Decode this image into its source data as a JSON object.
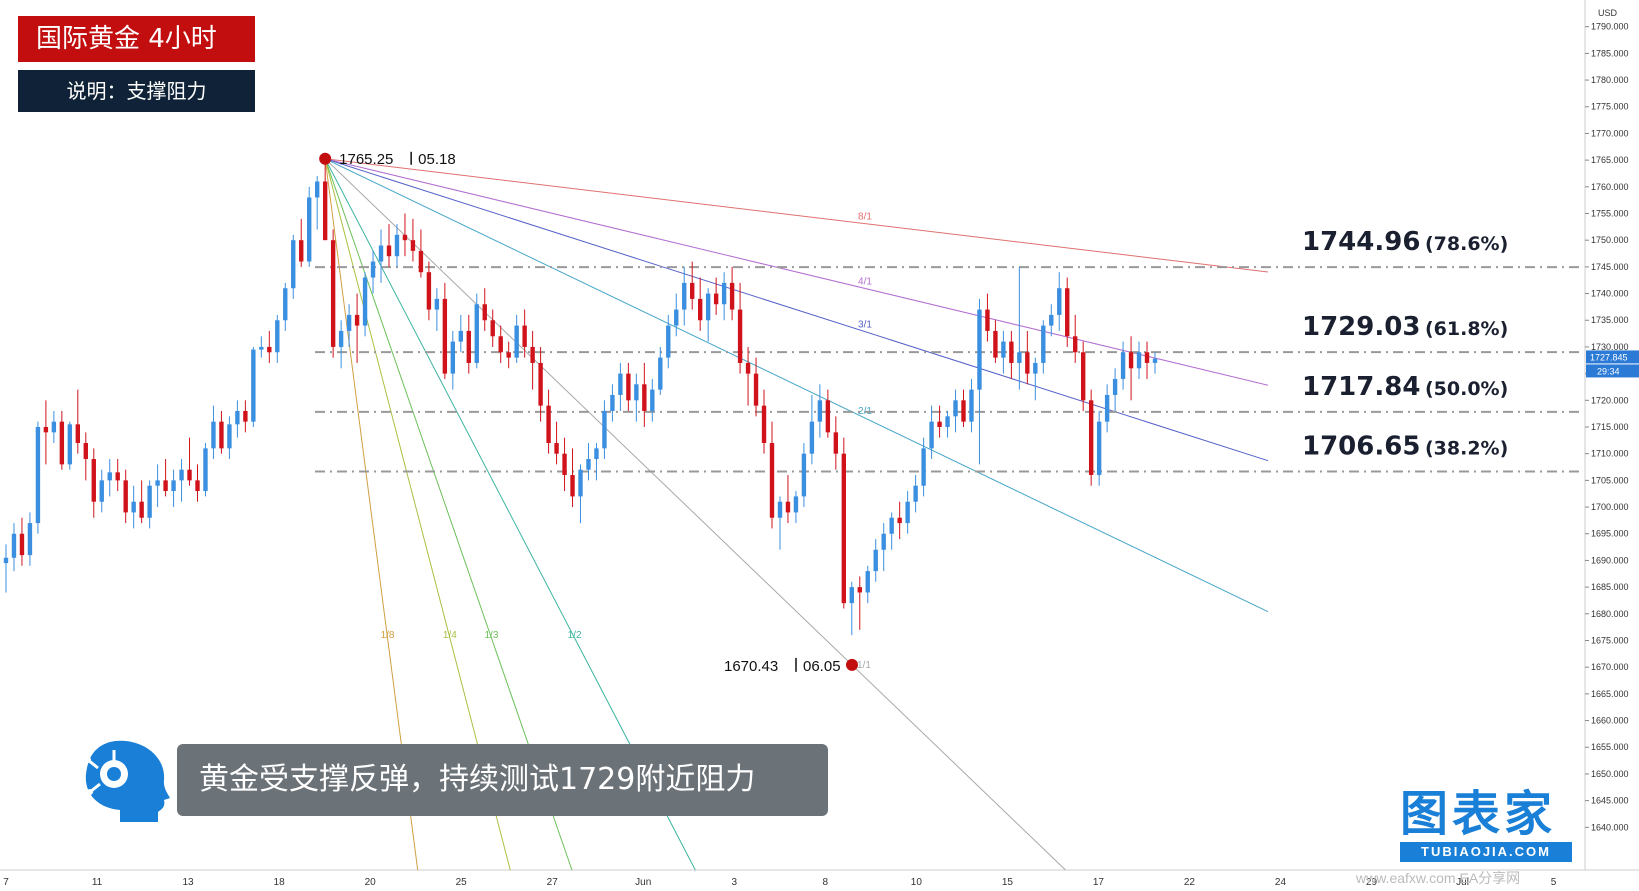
{
  "header": {
    "title": "国际黄金 4小时",
    "subtitle": "说明：支撑阻力"
  },
  "caption": "黄金受支撑反弹，持续测试1729附近阻力",
  "brand": {
    "name": "图表家",
    "url": "TUBIAOJIA.COM"
  },
  "watermark": "www.eafxw.com EA分享网",
  "colors": {
    "up": "#3b8fe0",
    "down": "#d0131b",
    "title_bg": "#c20e0e",
    "subtitle_bg": "#0f2237",
    "brand": "#1a7fd6"
  },
  "chart_data": {
    "type": "candlestick",
    "symbol": "XAUUSD",
    "interval": "4H",
    "currency": "USD",
    "ylim": [
      1632,
      1795
    ],
    "y_ticks": [
      1640,
      1645,
      1650,
      1655,
      1660,
      1665,
      1670,
      1675,
      1680,
      1685,
      1690,
      1695,
      1700,
      1705,
      1710,
      1715,
      1720,
      1725,
      1730,
      1735,
      1740,
      1745,
      1750,
      1755,
      1760,
      1765,
      1770,
      1775,
      1780,
      1785,
      1790
    ],
    "y_tick_format": "0.000",
    "x_ticks": [
      "7",
      "11",
      "13",
      "18",
      "20",
      "25",
      "27",
      "Jun",
      "3",
      "8",
      "10",
      "15",
      "17",
      "22",
      "24",
      "29",
      "Jul",
      "5"
    ],
    "last_price": "1727.845",
    "countdown": "29:34",
    "pivot_high": {
      "price": 1765.25,
      "price_label": "1765.25",
      "date_label": "05.18"
    },
    "pivot_low": {
      "price": 1670.43,
      "price_label": "1670.43",
      "date_label": "06.05"
    },
    "fib_levels": [
      {
        "price": 1744.96,
        "label": "1744.96",
        "pct": "(78.6%)"
      },
      {
        "price": 1729.03,
        "label": "1729.03",
        "pct": "(61.8%)"
      },
      {
        "price": 1717.84,
        "label": "1717.84",
        "pct": "(50.0%)"
      },
      {
        "price": 1706.65,
        "label": "1706.65",
        "pct": "(38.2%)"
      }
    ],
    "gann_fan": [
      {
        "label": "8/1",
        "color": "#e07070",
        "end_price": 1745.0
      },
      {
        "label": "4/1",
        "color": "#b46fd0",
        "end_price": 1722.5
      },
      {
        "label": "3/1",
        "color": "#5560c8",
        "end_price": 1710.0
      },
      {
        "label": "2/1",
        "color": "#46a6c8",
        "end_price": 1682.0
      },
      {
        "label": "1/1",
        "color": "#a8a8a8",
        "end_price": 1633.0
      },
      {
        "label": "1/2",
        "color": "#3cb4a0",
        "end_price": 1633.0
      },
      {
        "label": "1/3",
        "color": "#6cc05a",
        "end_price": 1633.0
      },
      {
        "label": "1/4",
        "color": "#a8c040",
        "end_price": 1633.0
      },
      {
        "label": "1/8",
        "color": "#d0a040",
        "end_price": 1633.0
      }
    ],
    "series": [
      {
        "values": [
          [
            1689.5,
            1693,
            1684,
            1690.5
          ],
          [
            1690.5,
            1697,
            1688,
            1695
          ],
          [
            1695,
            1698,
            1689,
            1691
          ],
          [
            1691,
            1699,
            1689,
            1697
          ],
          [
            1697,
            1716,
            1695,
            1715
          ],
          [
            1715,
            1720,
            1708,
            1714
          ],
          [
            1714,
            1718,
            1712,
            1716
          ],
          [
            1716,
            1718,
            1707,
            1708
          ],
          [
            1708,
            1716,
            1707,
            1715.5
          ],
          [
            1715.5,
            1722,
            1710,
            1712
          ],
          [
            1712,
            1714,
            1705,
            1709
          ],
          [
            1709,
            1711,
            1698,
            1701
          ],
          [
            1701,
            1707,
            1699,
            1705
          ],
          [
            1705,
            1709,
            1702,
            1706.5
          ],
          [
            1706.5,
            1709,
            1703,
            1705
          ],
          [
            1705,
            1707,
            1697,
            1699
          ],
          [
            1699,
            1704,
            1696,
            1701
          ],
          [
            1701,
            1705,
            1697,
            1698
          ],
          [
            1698,
            1705,
            1696,
            1704
          ],
          [
            1704,
            1708,
            1700,
            1705
          ],
          [
            1705,
            1709,
            1702,
            1703
          ],
          [
            1703,
            1707,
            1700,
            1705
          ],
          [
            1705,
            1709,
            1701,
            1707
          ],
          [
            1707,
            1713,
            1704,
            1705
          ],
          [
            1705,
            1708,
            1701,
            1703
          ],
          [
            1703,
            1712,
            1702,
            1711
          ],
          [
            1711,
            1719,
            1709,
            1716
          ],
          [
            1716,
            1718,
            1710,
            1711
          ],
          [
            1711,
            1717,
            1709,
            1715.5
          ],
          [
            1715.5,
            1720,
            1713,
            1718
          ],
          [
            1718,
            1720,
            1714,
            1716
          ],
          [
            1716,
            1730,
            1715,
            1729.5
          ],
          [
            1729.5,
            1732,
            1728,
            1730
          ],
          [
            1730,
            1733,
            1727,
            1729
          ],
          [
            1729,
            1736,
            1727,
            1735
          ],
          [
            1735,
            1742,
            1733,
            1741
          ],
          [
            1741,
            1751,
            1739,
            1750
          ],
          [
            1750,
            1754,
            1745,
            1746
          ],
          [
            1746,
            1760,
            1745,
            1758
          ],
          [
            1758,
            1762,
            1752,
            1761
          ],
          [
            1761,
            1765.25,
            1752,
            1750
          ],
          [
            1750,
            1752,
            1728,
            1730
          ],
          [
            1730,
            1735,
            1726,
            1733
          ],
          [
            1733,
            1738,
            1730,
            1736
          ],
          [
            1736,
            1740,
            1727,
            1734
          ],
          [
            1734,
            1744,
            1732,
            1743
          ],
          [
            1743,
            1748,
            1740,
            1746
          ],
          [
            1746,
            1752,
            1742,
            1749
          ],
          [
            1749,
            1753,
            1745,
            1747
          ],
          [
            1747,
            1753,
            1745,
            1751
          ],
          [
            1751,
            1755,
            1747,
            1750
          ],
          [
            1750,
            1754,
            1746,
            1748
          ],
          [
            1748,
            1752,
            1743,
            1744
          ],
          [
            1744,
            1746,
            1735,
            1737
          ],
          [
            1737,
            1741,
            1733,
            1739
          ],
          [
            1739,
            1742,
            1724,
            1725
          ],
          [
            1725,
            1733,
            1722,
            1731
          ],
          [
            1731,
            1736,
            1729,
            1733
          ],
          [
            1733,
            1736,
            1725,
            1727
          ],
          [
            1727,
            1740,
            1726,
            1738
          ],
          [
            1738,
            1741,
            1733,
            1735
          ],
          [
            1735,
            1737,
            1730,
            1732
          ],
          [
            1732,
            1734,
            1727,
            1729
          ],
          [
            1729,
            1731,
            1726,
            1728
          ],
          [
            1728,
            1736,
            1727,
            1734
          ],
          [
            1734,
            1737,
            1728,
            1730
          ],
          [
            1730,
            1733,
            1722,
            1727
          ],
          [
            1727,
            1730,
            1716,
            1719
          ],
          [
            1719,
            1722,
            1710,
            1712
          ],
          [
            1712,
            1716,
            1708,
            1710
          ],
          [
            1710,
            1713,
            1703,
            1706
          ],
          [
            1706,
            1711,
            1700,
            1702
          ],
          [
            1702,
            1708,
            1697,
            1707
          ],
          [
            1707,
            1712,
            1705,
            1709
          ],
          [
            1709,
            1712,
            1705,
            1711
          ],
          [
            1711,
            1720,
            1709,
            1718
          ],
          [
            1718,
            1723,
            1716,
            1721
          ],
          [
            1721,
            1727,
            1718,
            1725
          ],
          [
            1725,
            1727,
            1718,
            1720
          ],
          [
            1720,
            1725,
            1716,
            1723
          ],
          [
            1723,
            1727,
            1715,
            1718
          ],
          [
            1718,
            1724,
            1716,
            1722
          ],
          [
            1722,
            1730,
            1721,
            1728
          ],
          [
            1728,
            1736,
            1726,
            1734
          ],
          [
            1734,
            1740,
            1732,
            1737
          ],
          [
            1737,
            1745,
            1734,
            1742
          ],
          [
            1742,
            1746,
            1737,
            1739
          ],
          [
            1739,
            1743,
            1733,
            1735
          ],
          [
            1735,
            1741,
            1731,
            1740
          ],
          [
            1740,
            1743,
            1736,
            1738
          ],
          [
            1738,
            1744,
            1735,
            1742
          ],
          [
            1742,
            1745,
            1735,
            1737
          ],
          [
            1737,
            1742,
            1725,
            1727
          ],
          [
            1727,
            1730,
            1719,
            1725
          ],
          [
            1725,
            1728,
            1717,
            1719
          ],
          [
            1719,
            1722,
            1710,
            1712
          ],
          [
            1712,
            1716,
            1696,
            1698
          ],
          [
            1698,
            1702,
            1692,
            1701
          ],
          [
            1701,
            1706,
            1697,
            1699
          ],
          [
            1699,
            1703,
            1697,
            1702
          ],
          [
            1702,
            1712,
            1700,
            1710
          ],
          [
            1710,
            1721,
            1708,
            1716
          ],
          [
            1716,
            1723,
            1713,
            1720
          ],
          [
            1720,
            1722,
            1713,
            1714
          ],
          [
            1714,
            1717,
            1707,
            1710
          ],
          [
            1710,
            1713,
            1681,
            1682
          ],
          [
            1682,
            1686,
            1676,
            1685
          ],
          [
            1685,
            1687,
            1677,
            1684
          ],
          [
            1684,
            1689,
            1682,
            1688
          ],
          [
            1688,
            1694,
            1686,
            1692
          ],
          [
            1692,
            1697,
            1688,
            1695
          ],
          [
            1695,
            1699,
            1692,
            1698
          ],
          [
            1698,
            1701,
            1694,
            1697
          ],
          [
            1697,
            1703,
            1695,
            1701
          ],
          [
            1701,
            1706,
            1699,
            1704
          ],
          [
            1704,
            1713,
            1702,
            1711
          ],
          [
            1711,
            1719,
            1709,
            1716
          ],
          [
            1716,
            1719,
            1713,
            1715
          ],
          [
            1715,
            1718,
            1713,
            1717
          ],
          [
            1717,
            1722,
            1714,
            1720
          ],
          [
            1720,
            1722,
            1715,
            1716
          ],
          [
            1716,
            1724,
            1714,
            1722
          ],
          [
            1722,
            1739,
            1708,
            1737
          ],
          [
            1737,
            1740,
            1731,
            1733
          ],
          [
            1733,
            1735,
            1727,
            1728
          ],
          [
            1728,
            1733,
            1725,
            1731
          ],
          [
            1731,
            1733,
            1724,
            1727
          ],
          [
            1727,
            1745,
            1722,
            1729
          ],
          [
            1729,
            1733,
            1723,
            1725
          ],
          [
            1725,
            1728,
            1720,
            1727
          ],
          [
            1727,
            1735,
            1725,
            1734
          ],
          [
            1734,
            1738,
            1732,
            1736
          ],
          [
            1736,
            1744,
            1733,
            1741
          ],
          [
            1741,
            1743,
            1730,
            1732
          ],
          [
            1732,
            1736,
            1727,
            1729
          ],
          [
            1729,
            1731,
            1718,
            1720
          ],
          [
            1720,
            1722,
            1704,
            1706
          ],
          [
            1706,
            1718,
            1704,
            1716
          ],
          [
            1716,
            1723,
            1714,
            1721
          ],
          [
            1721,
            1726,
            1718,
            1724
          ],
          [
            1724,
            1731,
            1722,
            1729
          ],
          [
            1729,
            1732,
            1720,
            1726
          ],
          [
            1726,
            1731,
            1724,
            1729
          ],
          [
            1729,
            1731,
            1724,
            1727
          ],
          [
            1727,
            1729,
            1725,
            1727.8
          ]
        ]
      }
    ]
  }
}
